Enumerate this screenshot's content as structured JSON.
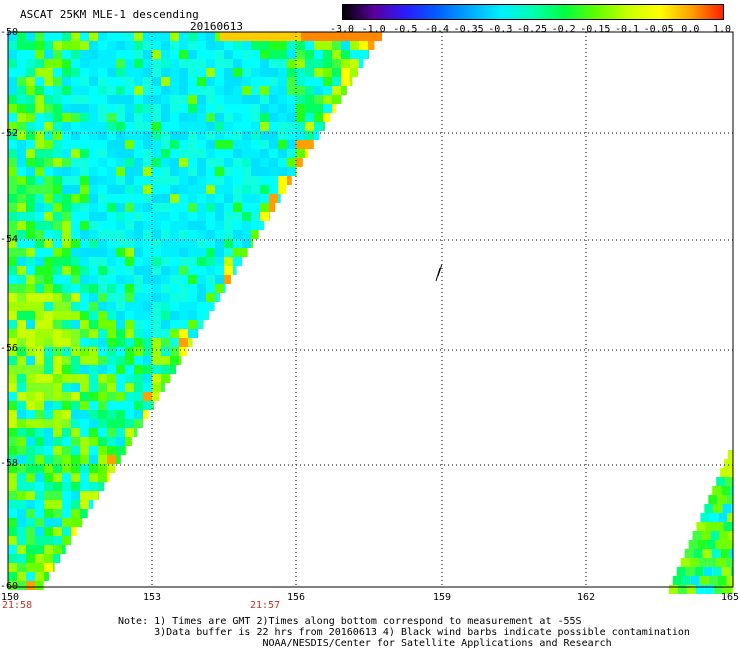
{
  "title": "ASCAT 25KM MLE-1 descending",
  "date": "20160613",
  "colorbar": {
    "labels": [
      "-3.0",
      "-1.0",
      "-0.5",
      "-0.4",
      "-0.35",
      "-0.3",
      "-0.25",
      "-0.2",
      "-0.15",
      "-0.1",
      "-0.05",
      "0.0",
      "1.0"
    ],
    "colors": [
      "#000000",
      "#5a00a0",
      "#2a1cff",
      "#0060ff",
      "#00a8ff",
      "#00f0ff",
      "#00ffb0",
      "#00ff40",
      "#60ff00",
      "#c8ff00",
      "#ffff00",
      "#ffa000",
      "#ff2000"
    ]
  },
  "axes": {
    "lat_labels": [
      "-50",
      "-52",
      "-54",
      "-56",
      "-58",
      "-60"
    ],
    "lon_labels": [
      "150",
      "153",
      "156",
      "159",
      "162",
      "165"
    ]
  },
  "times": [
    "21:58",
    "21:57"
  ],
  "notes": [
    "Note: 1) Times are GMT 2)Times along bottom correspond to measurement at -55S",
    "      3)Data buffer is 22 hrs from 20160613 4) Black wind barbs indicate possible contamination",
    "                        NOAA/NESDIS/Center for Satellite Applications and Research"
  ]
}
